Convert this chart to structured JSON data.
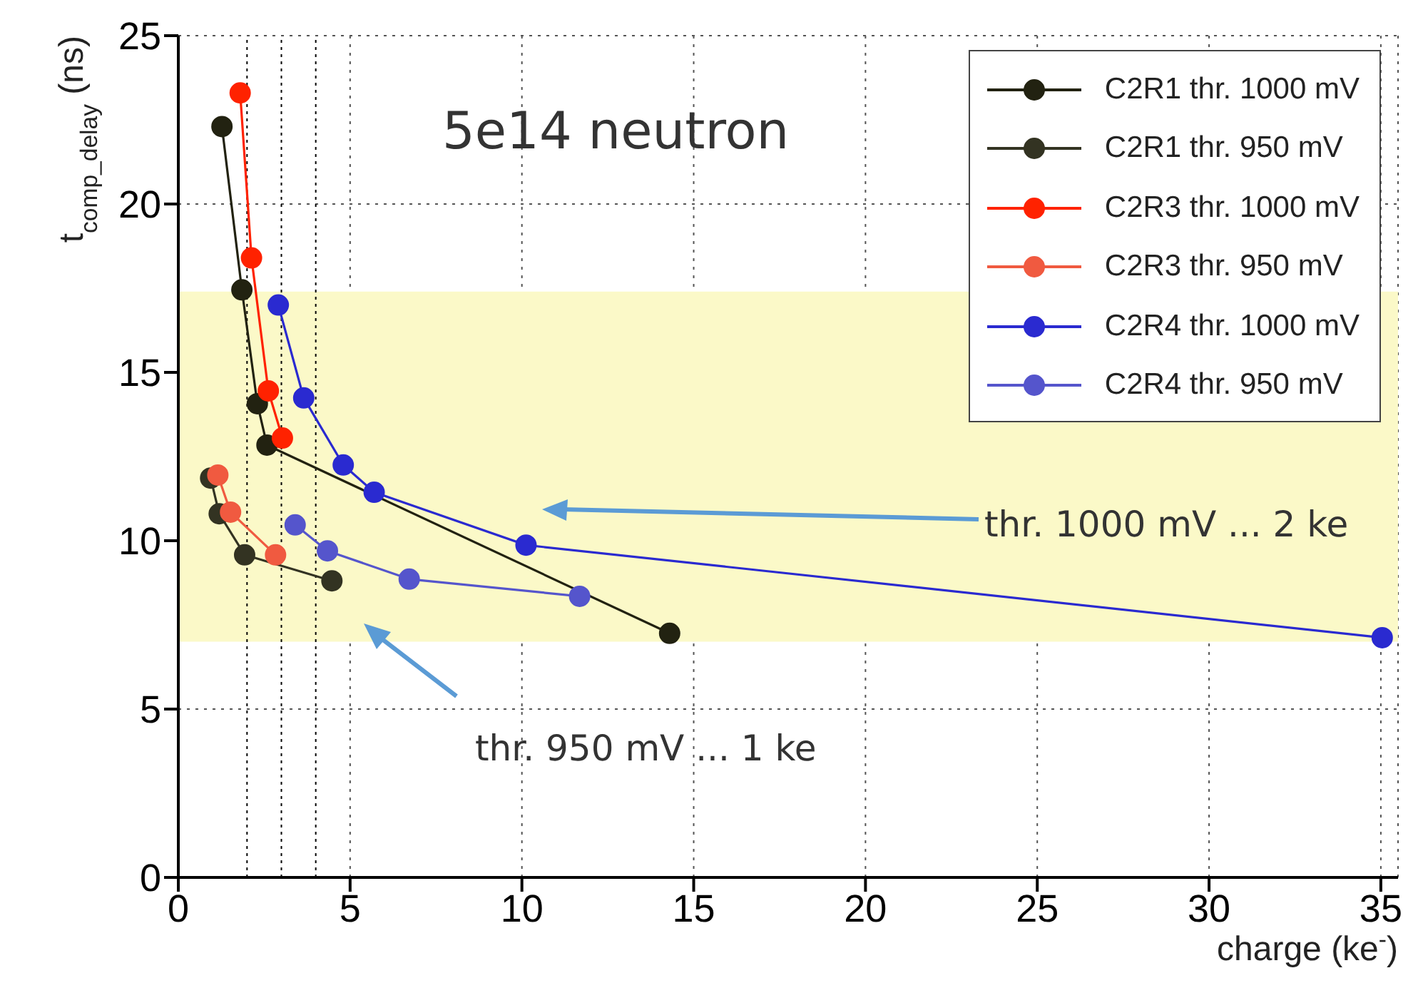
{
  "chart_data": {
    "type": "line",
    "xlabel": "charge (ke$^{-}$)",
    "ylabel": "t$_{comp_delay}$ (ns)",
    "xlim": [
      0,
      35.5
    ],
    "xticks": [
      0,
      5,
      10,
      15,
      20,
      25,
      30,
      35
    ],
    "ylim": [
      0,
      25
    ],
    "yticks": [
      0,
      5,
      10,
      15,
      20,
      25
    ],
    "grid": true,
    "legend": "top right",
    "marker": "circle",
    "line_style": "solid",
    "annotations": [
      "5e14 neutron",
      "thr. 1000 mV ... 2 ke",
      "thr. 950 mV ... 1 ke"
    ],
    "ref_lines": [
      {
        "axis": "x",
        "value": 2,
        "label": null,
        "color": "#000000",
        "line_style": "dotted"
      },
      {
        "axis": "x",
        "value": 3,
        "label": null,
        "color": "#000000",
        "line_style": "dotted"
      },
      {
        "axis": "x",
        "value": 4,
        "label": null,
        "color": "#000000",
        "line_style": "dotted"
      }
    ],
    "bands": [
      {
        "axis": "y",
        "from": 7,
        "to": 17.4,
        "label": null,
        "color": "#fbf9c8"
      }
    ],
    "series": [
      {
        "name": "C2R1 thr. 1000 mV",
        "color": "#222211",
        "x": [
          1.27,
          1.85,
          2.3,
          2.58,
          14.3
        ],
        "values": [
          22.3,
          17.45,
          14.07,
          12.84,
          7.25
        ]
      },
      {
        "name": "C2R1 thr. 950 mV",
        "color": "#333322",
        "x": [
          0.94,
          1.19,
          1.93,
          4.47
        ],
        "values": [
          11.86,
          10.8,
          9.58,
          8.81
        ]
      },
      {
        "name": "C2R3 thr. 1000 mV",
        "color": "#ff2200",
        "x": [
          1.8,
          2.13,
          2.62,
          3.03
        ],
        "values": [
          23.3,
          18.4,
          14.45,
          13.05
        ]
      },
      {
        "name": "C2R3 thr. 950 mV",
        "color": "#f05a40",
        "x": [
          1.15,
          1.52,
          2.83
        ],
        "values": [
          11.95,
          10.85,
          9.58
        ]
      },
      {
        "name": "C2R4 thr. 1000 mV",
        "color": "#2a2ad0",
        "x": [
          2.91,
          3.65,
          4.8,
          5.7,
          10.12,
          35.04
        ],
        "values": [
          17.0,
          14.24,
          12.25,
          11.44,
          9.87,
          7.12
        ]
      },
      {
        "name": "C2R4 thr. 950 mV",
        "color": "#5555cc",
        "x": [
          3.4,
          4.34,
          6.72,
          11.68
        ],
        "values": [
          10.47,
          9.7,
          8.86,
          8.35
        ]
      }
    ]
  }
}
